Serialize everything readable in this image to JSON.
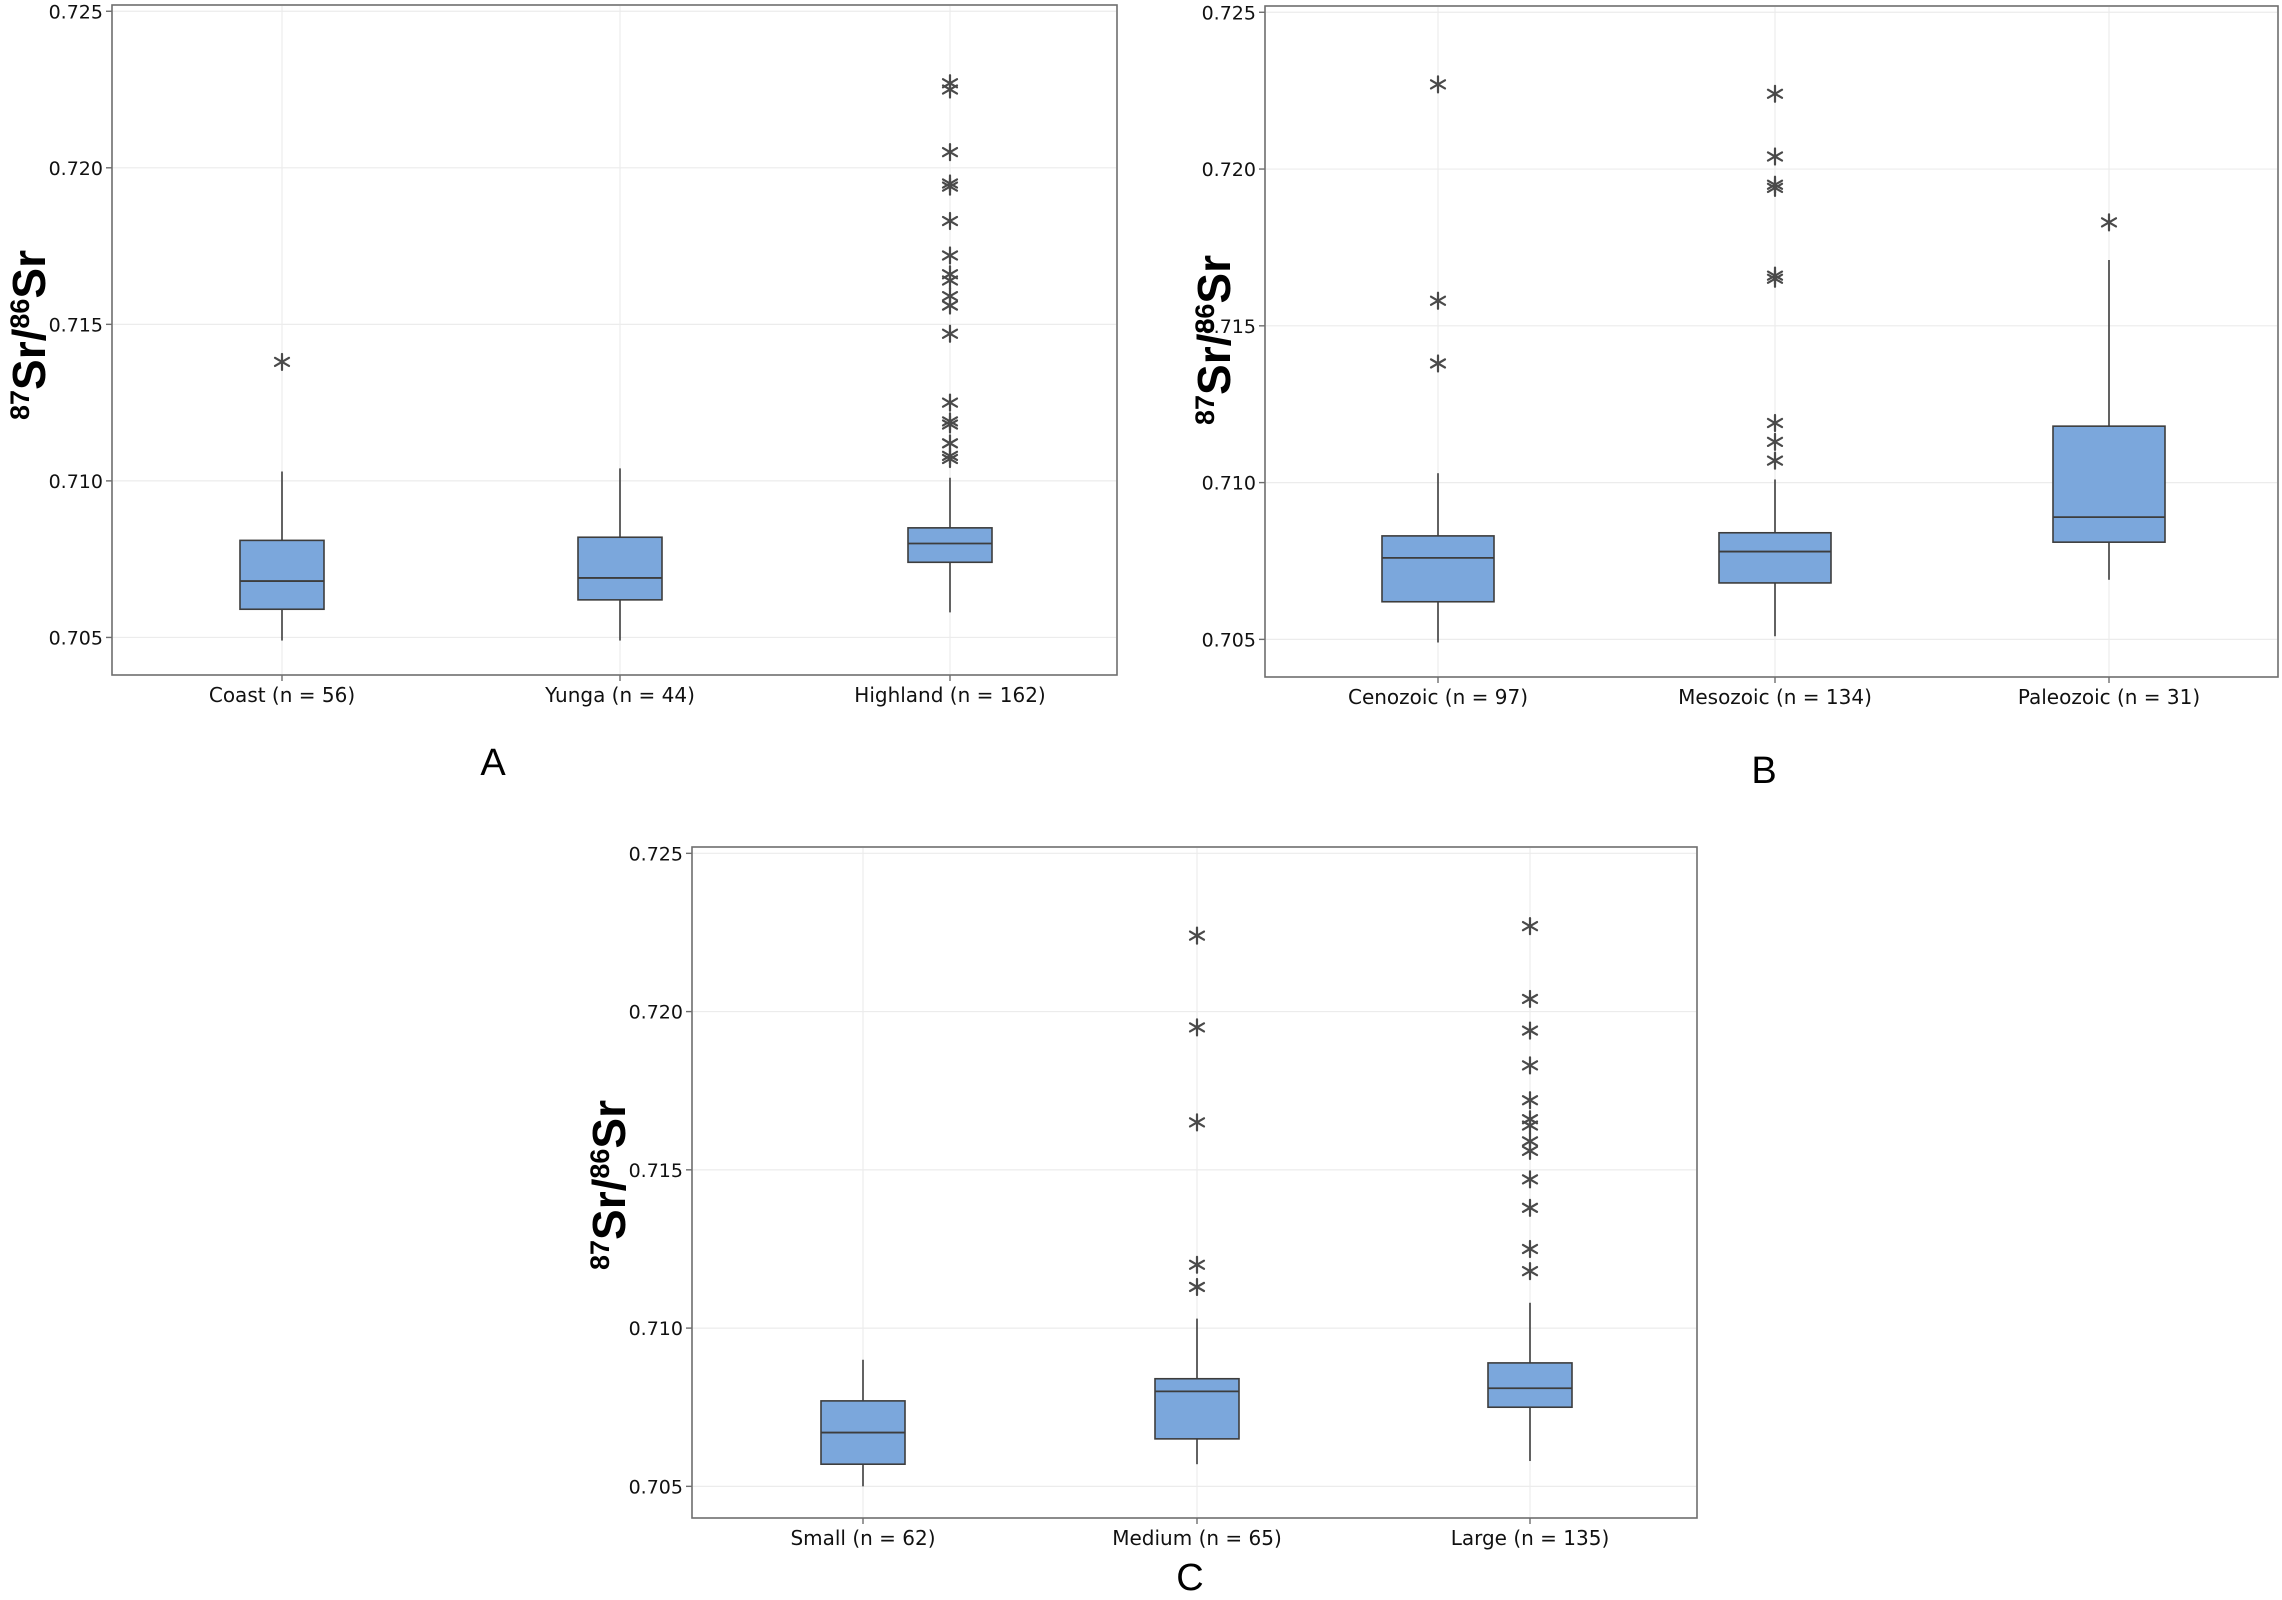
{
  "colors": {
    "box_fill": "#7ba7dc",
    "box_stroke": "#3d3d3d",
    "outlier": "#4a4a4a",
    "grid": "#ececec",
    "frame": "#6e6e6e"
  },
  "chart_data": [
    {
      "type": "box",
      "panel_label": "A",
      "ylabel": {
        "iso1": "87",
        "el1": "Sr",
        "slash": "/",
        "iso2": "86",
        "el2": "Sr"
      },
      "ylim": [
        0.7038,
        0.7252
      ],
      "yticks": [
        "0.705",
        "0.710",
        "0.715",
        "0.720",
        "0.725"
      ],
      "grid": true,
      "categories": [
        "Coast (n = 56)",
        "Yunga (n = 44)",
        "Highland (n = 162)"
      ],
      "boxes": [
        {
          "whisker_low": 0.7049,
          "q1": 0.7059,
          "median": 0.7068,
          "q3": 0.7081,
          "whisker_high": 0.7103,
          "outliers": [
            0.7138
          ]
        },
        {
          "whisker_low": 0.7049,
          "q1": 0.7062,
          "median": 0.7069,
          "q3": 0.7082,
          "whisker_high": 0.7104,
          "outliers": []
        },
        {
          "whisker_low": 0.7058,
          "q1": 0.7074,
          "median": 0.708,
          "q3": 0.7085,
          "whisker_high": 0.7101,
          "outliers": [
            0.7107,
            0.7108,
            0.7112,
            0.7118,
            0.7119,
            0.7125,
            0.7147,
            0.7156,
            0.7159,
            0.7164,
            0.7166,
            0.7172,
            0.7183,
            0.7194,
            0.7195,
            0.7205,
            0.7225,
            0.7227
          ]
        }
      ]
    },
    {
      "type": "box",
      "panel_label": "B",
      "ylabel": {
        "iso1": "87",
        "el1": "Sr",
        "slash": "/",
        "iso2": "86",
        "el2": "Sr"
      },
      "ylim": [
        0.7038,
        0.7252
      ],
      "yticks": [
        "0.705",
        "0.710",
        "0.715",
        "0.720",
        "0.725"
      ],
      "grid": true,
      "categories": [
        "Cenozoic (n = 97)",
        "Mesozoic (n = 134)",
        "Paleozoic (n = 31)"
      ],
      "boxes": [
        {
          "whisker_low": 0.7049,
          "q1": 0.7062,
          "median": 0.7076,
          "q3": 0.7083,
          "whisker_high": 0.7103,
          "outliers": [
            0.7138,
            0.7158,
            0.7227
          ]
        },
        {
          "whisker_low": 0.7051,
          "q1": 0.7068,
          "median": 0.7078,
          "q3": 0.7084,
          "whisker_high": 0.7101,
          "outliers": [
            0.7107,
            0.7113,
            0.7119,
            0.7165,
            0.7166,
            0.7194,
            0.7195,
            0.7204,
            0.7224
          ]
        },
        {
          "whisker_low": 0.7069,
          "q1": 0.7081,
          "median": 0.7089,
          "q3": 0.7118,
          "whisker_high": 0.7171,
          "outliers": [
            0.7183
          ]
        }
      ]
    },
    {
      "type": "box",
      "panel_label": "C",
      "ylabel": {
        "iso1": "87",
        "el1": "Sr",
        "slash": "/",
        "iso2": "86",
        "el2": "Sr"
      },
      "ylim": [
        0.704,
        0.7252
      ],
      "yticks": [
        "0.705",
        "0.710",
        "0.715",
        "0.720",
        "0.725"
      ],
      "grid": true,
      "categories": [
        "Small (n = 62)",
        "Medium (n = 65)",
        "Large (n = 135)"
      ],
      "boxes": [
        {
          "whisker_low": 0.705,
          "q1": 0.7057,
          "median": 0.7067,
          "q3": 0.7077,
          "whisker_high": 0.709,
          "outliers": []
        },
        {
          "whisker_low": 0.7057,
          "q1": 0.7065,
          "median": 0.708,
          "q3": 0.7084,
          "whisker_high": 0.7103,
          "outliers": [
            0.7113,
            0.712,
            0.7165,
            0.7195,
            0.7224
          ]
        },
        {
          "whisker_low": 0.7058,
          "q1": 0.7075,
          "median": 0.7081,
          "q3": 0.7089,
          "whisker_high": 0.7108,
          "outliers": [
            0.7118,
            0.7125,
            0.7138,
            0.7147,
            0.7156,
            0.7159,
            0.7164,
            0.7166,
            0.7172,
            0.7183,
            0.7194,
            0.7204,
            0.7227
          ]
        }
      ]
    }
  ]
}
